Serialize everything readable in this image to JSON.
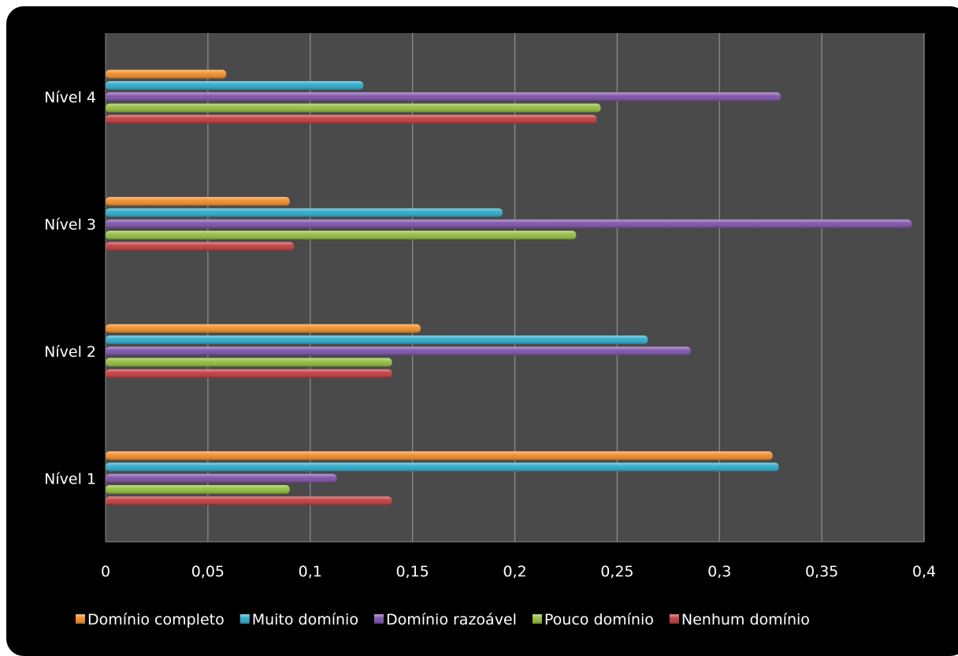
{
  "chart_data": {
    "type": "bar",
    "orientation": "horizontal",
    "categories": [
      "Nível 1",
      "Nível 2",
      "Nível 3",
      "Nível 4"
    ],
    "x_ticks": [
      "0",
      "0,05",
      "0,1",
      "0,15",
      "0,2",
      "0,25",
      "0,3",
      "0,35",
      "0,4"
    ],
    "xlim": [
      0,
      0.4
    ],
    "grid": true,
    "legend_position": "bottom",
    "series": [
      {
        "name": "Nenhum domínio",
        "color": "#c0383a",
        "values": [
          0.14,
          0.14,
          0.092,
          0.24
        ]
      },
      {
        "name": "Pouco domínio",
        "color": "#8fbb3a",
        "values": [
          0.09,
          0.14,
          0.23,
          0.242
        ]
      },
      {
        "name": "Domínio razoável",
        "color": "#7b4fa8",
        "values": [
          0.113,
          0.286,
          0.394,
          0.33
        ]
      },
      {
        "name": "Muito domínio",
        "color": "#2aa8c8",
        "values": [
          0.329,
          0.265,
          0.194,
          0.126
        ]
      },
      {
        "name": "Domínio completo",
        "color": "#f08a24",
        "values": [
          0.326,
          0.154,
          0.09,
          0.059
        ]
      }
    ],
    "legend_order": [
      "Domínio completo",
      "Muito domínio",
      "Domínio razoável",
      "Pouco domínio",
      "Nenhum domínio"
    ]
  },
  "colors": {
    "background": "#000000",
    "plot_area": "#4a4a4a",
    "gridline": "#8a8a8a",
    "text": "#ffffff"
  }
}
